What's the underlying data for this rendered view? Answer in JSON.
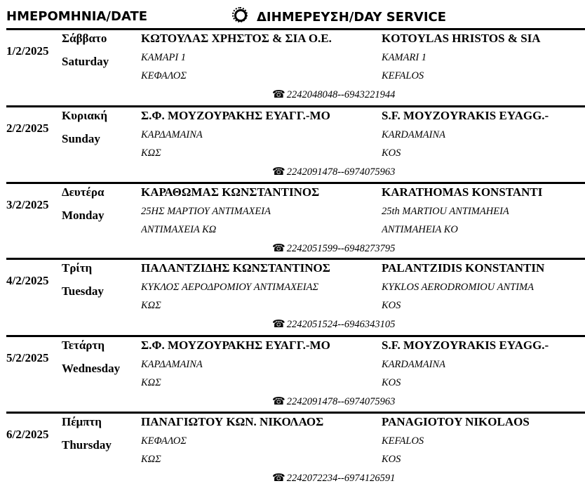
{
  "header": {
    "date_label": "ΗΜΕΡΟΜΗΝΙΑ/DATE",
    "service_label": "ΔΙΗΜΕΡΕΥΣΗ/DAY SERVICE",
    "service_icon": "sun-icon"
  },
  "phone_icon": "☎",
  "entries": [
    {
      "date": "1/2/2025",
      "day_gr": "Σάββατο",
      "day_en": "Saturday",
      "name_gr": "ΚΩΤΟΥΛΑΣ ΧΡΗΣΤΟΣ & ΣΙΑ Ο.Ε.",
      "name_en": "KOTOYLAS HRISTOS & SIA",
      "addr_gr1": "ΚΑΜΑΡΙ 1",
      "addr_gr2": "ΚΕΦΑΛΟΣ",
      "addr_en1": "KAMARI 1",
      "addr_en2": "KEFALOS",
      "phone": "2242048048--6943221944"
    },
    {
      "date": "2/2/2025",
      "day_gr": "Κυριακή",
      "day_en": "Sunday",
      "name_gr": "Σ.Φ. ΜΟΥΖΟΥΡΑΚΗΣ ΕΥΑΓΓ.-ΜΟ",
      "name_en": "S.F. MOYZOYRAKIS EYAGG.-",
      "addr_gr1": "ΚΑΡΔΑΜΑΙΝΑ",
      "addr_gr2": "ΚΩΣ",
      "addr_en1": "KARDAMAINA",
      "addr_en2": "KOS",
      "phone": "2242091478--6974075963"
    },
    {
      "date": "3/2/2025",
      "day_gr": "Δευτέρα",
      "day_en": "Monday",
      "name_gr": "ΚΑΡΑΘΩΜΑΣ ΚΩΝΣΤΑΝΤΙΝΟΣ",
      "name_en": "KARATHOMAS KONSTANTI",
      "addr_gr1": "25ΗΣ ΜΑΡΤΙΟΥ ΑΝΤΙΜΑΧΕΙΑ",
      "addr_gr2": "ΑΝΤΙΜΑΧΕΙΑ ΚΩ",
      "addr_en1": "25th MARTIOU ANTIMAHEIA",
      "addr_en2": "ANTIMAHEIA KO",
      "phone": "2242051599--6948273795"
    },
    {
      "date": "4/2/2025",
      "day_gr": "Τρίτη",
      "day_en": "Tuesday",
      "name_gr": "ΠΑΛΑΝΤΖΙΔΗΣ ΚΩΝΣΤΑΝΤΙΝΟΣ",
      "name_en": "PALANTZIDIS KONSTANTIN",
      "addr_gr1": "ΚΥΚΛΟΣ ΑΕΡΟΔΡΟΜΙΟΥ ΑΝΤΙΜΑΧΕΙΑΣ",
      "addr_gr2": "ΚΩΣ",
      "addr_en1": "KYKLOS AERODROMIOU ANTIMA",
      "addr_en2": "KOS",
      "phone": "2242051524--6946343105"
    },
    {
      "date": "5/2/2025",
      "day_gr": "Τετάρτη",
      "day_en": "Wednesday",
      "name_gr": "Σ.Φ. ΜΟΥΖΟΥΡΑΚΗΣ ΕΥΑΓΓ.-ΜΟ",
      "name_en": "S.F. MOYZOYRAKIS EYAGG.-",
      "addr_gr1": "ΚΑΡΔΑΜΑΙΝΑ",
      "addr_gr2": "ΚΩΣ",
      "addr_en1": "KARDAMAINA",
      "addr_en2": "KOS",
      "phone": "2242091478--6974075963"
    },
    {
      "date": "6/2/2025",
      "day_gr": "Πέμπτη",
      "day_en": "Thursday",
      "name_gr": "ΠΑΝΑΓΙΩΤΟΥ ΚΩΝ. ΝΙΚΟΛΑΟΣ",
      "name_en": "PANAGIOTOY NIKOLAOS",
      "addr_gr1": "ΚΕΦΑΛΟΣ",
      "addr_gr2": "ΚΩΣ",
      "addr_en1": "KEFALOS",
      "addr_en2": "KOS",
      "phone": "2242072234--6974126591"
    }
  ]
}
